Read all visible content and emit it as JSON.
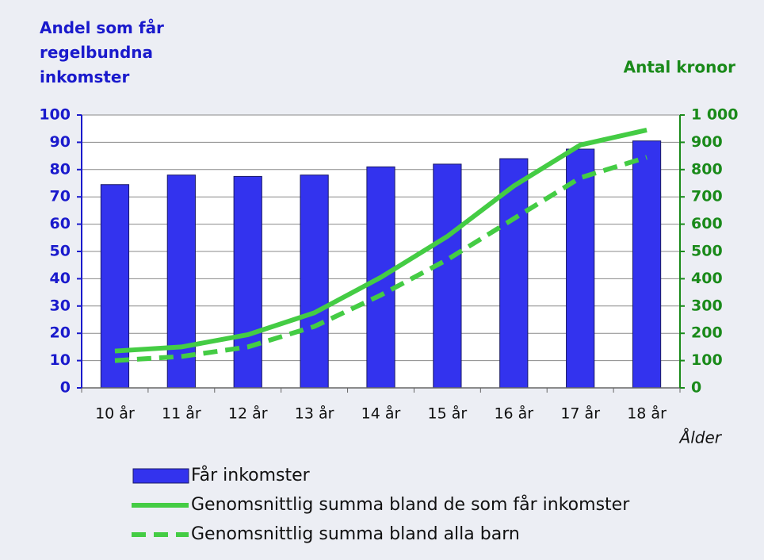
{
  "chart_data": {
    "type": "bar",
    "ylabel": "Andel som får regelbundna inkomster",
    "y2label": "Antal kronor",
    "xlabel": "Ålder",
    "categories": [
      "10 år",
      "11 år",
      "12 år",
      "13 år",
      "14 år",
      "15 år",
      "16 år",
      "17 år",
      "18 år"
    ],
    "series": [
      {
        "name": "Får inkomster",
        "type": "bar",
        "color": "#3333ee",
        "values": [
          74.5,
          78,
          77.5,
          78,
          81,
          82,
          84,
          87.5,
          90.5
        ]
      },
      {
        "name": "Genomsnittlig summa bland de som får inkomster",
        "type": "line",
        "axis": "y2",
        "dashed": false,
        "color": "#44cc44",
        "values": [
          135,
          150,
          195,
          275,
          405,
          555,
          740,
          890,
          945
        ]
      },
      {
        "name": "Genomsnittlig summa bland alla barn",
        "type": "line",
        "axis": "y2",
        "dashed": true,
        "color": "#44cc44",
        "values": [
          100,
          115,
          150,
          225,
          340,
          470,
          620,
          770,
          845
        ]
      }
    ],
    "ylim": [
      0,
      100
    ],
    "yticks": [
      0,
      10,
      20,
      30,
      40,
      50,
      60,
      70,
      80,
      90,
      100
    ],
    "y2lim": [
      0,
      1000
    ],
    "y2ticks": [
      0,
      100,
      200,
      300,
      400,
      500,
      600,
      700,
      800,
      900,
      {
        "value": 1000,
        "label": "1 000"
      }
    ],
    "grid": true
  }
}
